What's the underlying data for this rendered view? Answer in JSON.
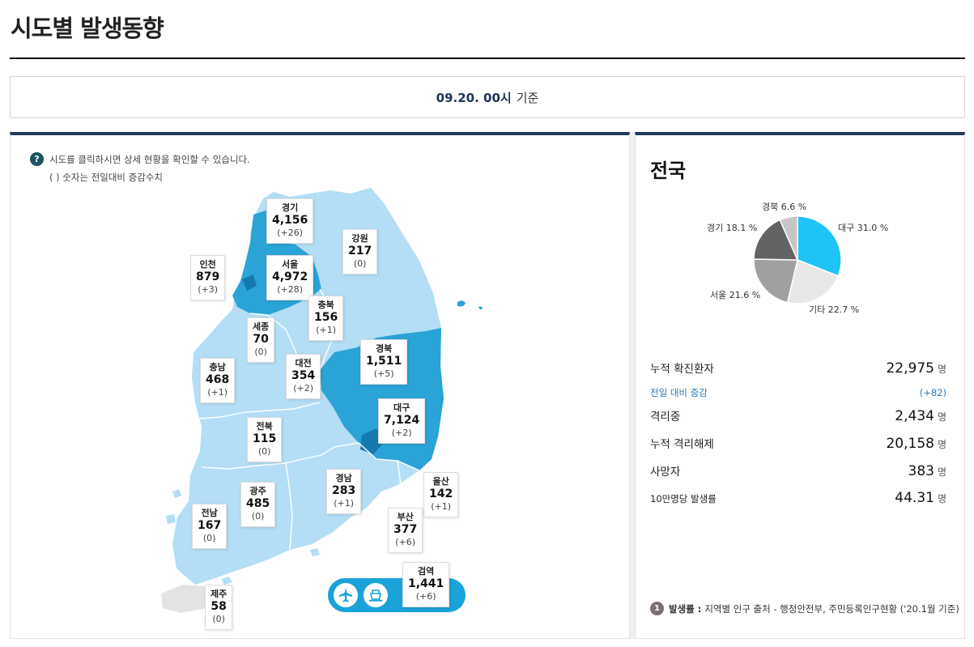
{
  "page_title": "시도별 발생동향",
  "date": {
    "value": "09.20. 00시",
    "suffix": "기준"
  },
  "help": {
    "icon": "question-icon",
    "line1": "시도를 클릭하시면 상세 현황을 확인할 수 있습니다.",
    "line2": "( ) 숫자는 전일대비 증감수치"
  },
  "regions": [
    {
      "id": "gyeonggi",
      "name": "경기",
      "count": "4,156",
      "diff": "(+26)"
    },
    {
      "id": "gangwon",
      "name": "강원",
      "count": "217",
      "diff": "(0)"
    },
    {
      "id": "incheon",
      "name": "인천",
      "count": "879",
      "diff": "(+3)"
    },
    {
      "id": "seoul",
      "name": "서울",
      "count": "4,972",
      "diff": "(+28)"
    },
    {
      "id": "chungbuk",
      "name": "충북",
      "count": "156",
      "diff": "(+1)"
    },
    {
      "id": "sejong",
      "name": "세종",
      "count": "70",
      "diff": "(0)"
    },
    {
      "id": "gyeongbuk",
      "name": "경북",
      "count": "1,511",
      "diff": "(+5)"
    },
    {
      "id": "daejeon",
      "name": "대전",
      "count": "354",
      "diff": "(+2)"
    },
    {
      "id": "chungnam",
      "name": "충남",
      "count": "468",
      "diff": "(+1)"
    },
    {
      "id": "daegu",
      "name": "대구",
      "count": "7,124",
      "diff": "(+2)"
    },
    {
      "id": "jeonbuk",
      "name": "전북",
      "count": "115",
      "diff": "(0)"
    },
    {
      "id": "ulsan",
      "name": "울산",
      "count": "142",
      "diff": "(+1)"
    },
    {
      "id": "gyeongnam",
      "name": "경남",
      "count": "283",
      "diff": "(+1)"
    },
    {
      "id": "gwangju",
      "name": "광주",
      "count": "485",
      "diff": "(0)"
    },
    {
      "id": "jeonnam",
      "name": "전남",
      "count": "167",
      "diff": "(0)"
    },
    {
      "id": "busan",
      "name": "부산",
      "count": "377",
      "diff": "(+6)"
    },
    {
      "id": "quarantine",
      "name": "검역",
      "count": "1,441",
      "diff": "(+6)"
    },
    {
      "id": "jeju",
      "name": "제주",
      "count": "58",
      "diff": "(0)"
    }
  ],
  "transport": {
    "plane_icon": "airplane-icon",
    "ship_icon": "ship-icon"
  },
  "colors": {
    "light": "#b3def5",
    "medium": "#2aa3d7",
    "dark": "#1479ae",
    "jeju": "#e3e3e3",
    "accent": "#1f3a5c",
    "sub_blue": "#2b7bb9"
  },
  "national": {
    "title": "전국",
    "chart_data": {
      "type": "pie",
      "slices": [
        {
          "label": "대구 31.0 %",
          "value": 31.0,
          "color": "#1ec3f7"
        },
        {
          "label": "기타 22.7 %",
          "value": 22.7,
          "color": "#e8e8e8"
        },
        {
          "label": "서울 21.6 %",
          "value": 21.6,
          "color": "#a0a0a0"
        },
        {
          "label": "경기 18.1 %",
          "value": 18.1,
          "color": "#636363"
        },
        {
          "label": "경북 6.6 %",
          "value": 6.6,
          "color": "#c6c6c6"
        }
      ]
    },
    "stats": [
      {
        "label": "누적 확진환자",
        "value": "22,975",
        "unit": "명"
      },
      {
        "label": "전일 대비 증감",
        "value": "(+82)",
        "unit": ""
      },
      {
        "label": "격리중",
        "value": "2,434",
        "unit": "명"
      },
      {
        "label": "누적 격리해제",
        "value": "20,158",
        "unit": "명"
      },
      {
        "label": "사망자",
        "value": "383",
        "unit": "명"
      },
      {
        "label": "10만명당 발생률",
        "value": "44.31",
        "unit": "명"
      }
    ],
    "note": {
      "num": "1",
      "bold": "발생률 :",
      "text": "지역별 인구 출처 - 행정안전부, 주민등록인구현황 ('20.1월 기준)"
    }
  }
}
